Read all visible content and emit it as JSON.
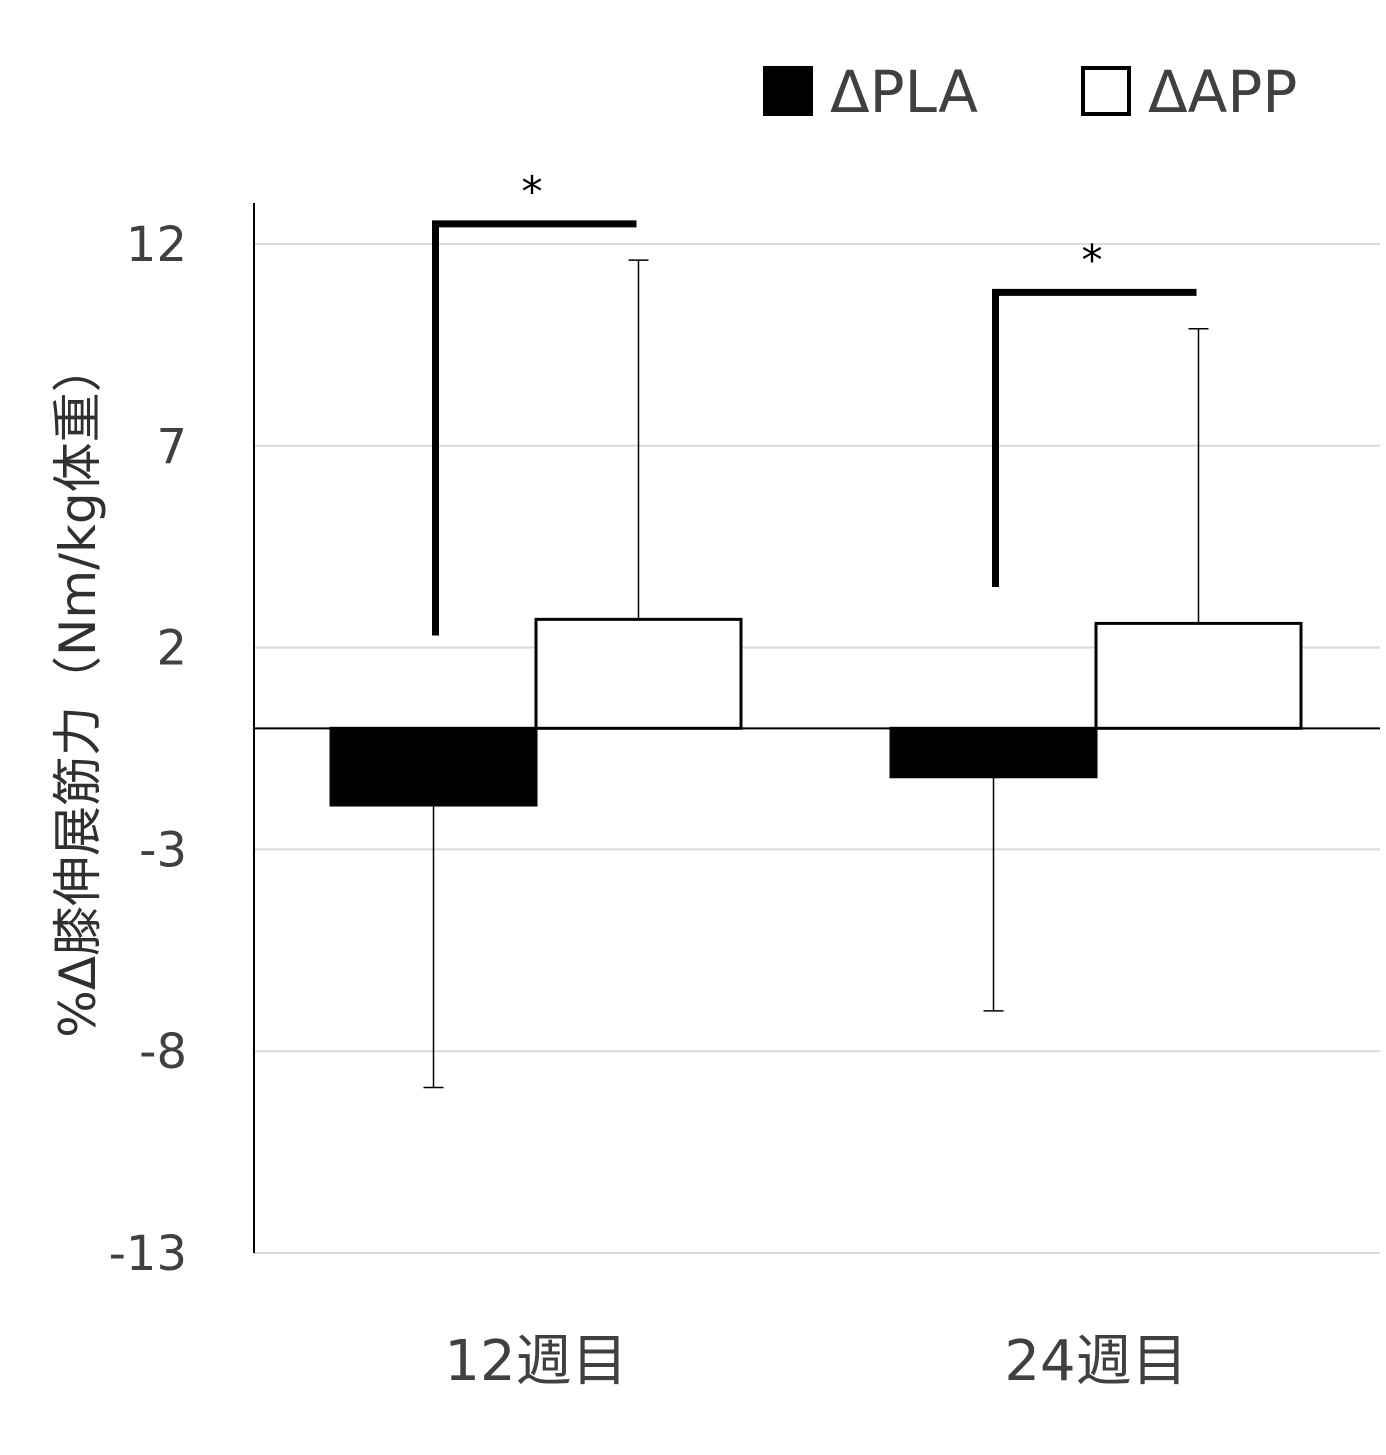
{
  "chart_data": {
    "type": "bar",
    "title": "",
    "xlabel": "",
    "ylabel": "%Δ膝伸展筋力（Nm/kg体重）",
    "categories": [
      "12週目",
      "24週目"
    ],
    "series": [
      {
        "name": "ΔPLA",
        "values": [
          -1.9,
          -1.2
        ],
        "error_bars": [
          7.0,
          5.8
        ],
        "fill": "#000000"
      },
      {
        "name": "ΔAPP",
        "values": [
          2.7,
          2.6
        ],
        "error_bars": [
          8.9,
          7.3
        ],
        "fill": "#ffffff"
      }
    ],
    "yticks": [
      12,
      7,
      2,
      -3,
      -8,
      -13
    ],
    "ylim": [
      -13,
      12.8
    ],
    "grid": true,
    "legend_position": "top-right",
    "significance": [
      {
        "category_index": 0,
        "label": "*",
        "bar_top": 12.5,
        "left_leg_bottom": 2.3
      },
      {
        "category_index": 1,
        "label": "*",
        "bar_top": 10.8,
        "left_leg_bottom": 3.5
      }
    ]
  },
  "colors": {
    "grid": "#d9d9d9",
    "axis": "#000000",
    "text": "#404040"
  }
}
